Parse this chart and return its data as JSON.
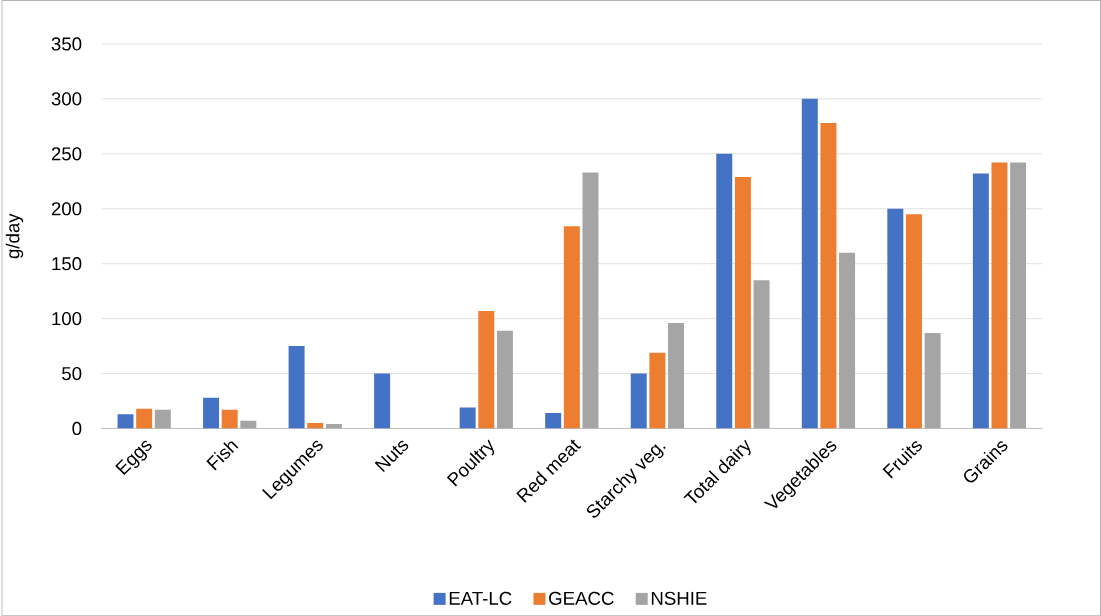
{
  "chart_data": {
    "type": "bar",
    "ylabel": "g/day",
    "categories": [
      "Eggs",
      "Fish",
      "Legumes",
      "Nuts",
      "Poultry",
      "Red meat",
      "Starchy veg.",
      "Total dairy",
      "Vegetables",
      "Fruits",
      "Grains"
    ],
    "series": [
      {
        "name": "EAT-LC",
        "color": "#4472c4",
        "values": [
          13,
          28,
          75,
          50,
          19,
          14,
          50,
          250,
          300,
          200,
          232
        ]
      },
      {
        "name": "GEACC",
        "color": "#ed7d31",
        "values": [
          18,
          17,
          5,
          null,
          107,
          184,
          69,
          229,
          278,
          195,
          242
        ]
      },
      {
        "name": "NSHIE",
        "color": "#a5a5a5",
        "values": [
          17,
          7,
          4,
          null,
          89,
          233,
          96,
          135,
          160,
          87,
          242
        ]
      }
    ],
    "ylim": [
      0,
      350
    ],
    "yticks": [
      0,
      50,
      100,
      150,
      200,
      250,
      300,
      350
    ],
    "grid": "y",
    "legend": "bottom"
  }
}
